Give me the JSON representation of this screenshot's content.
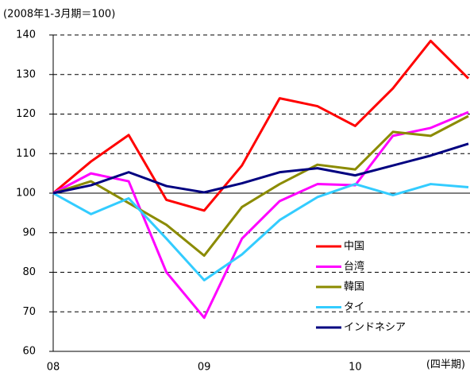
{
  "chart_data": {
    "type": "line",
    "subtitle": "(2008年1-3月期＝100)",
    "x_label": "(四半期)",
    "categories": [
      "08",
      null,
      null,
      null,
      "09",
      null,
      null,
      null,
      "10",
      null,
      null,
      null
    ],
    "ylim": [
      60,
      140
    ],
    "yticks": [
      60,
      70,
      80,
      90,
      100,
      110,
      120,
      130,
      140
    ],
    "grid": true,
    "reference_line": 100,
    "legend": "lower right",
    "series": [
      {
        "name": "中国",
        "color": "#ff0000",
        "values": [
          100,
          108,
          114.7,
          98.3,
          95.6,
          107,
          124,
          122,
          117,
          126.5,
          138.5,
          129
        ]
      },
      {
        "name": "台湾",
        "color": "#ff00ff",
        "values": [
          100,
          105,
          103,
          80,
          68.5,
          88.5,
          98,
          102.3,
          102,
          114.5,
          116.5,
          120.5
        ]
      },
      {
        "name": "韓国",
        "color": "#8b8b00",
        "values": [
          100,
          103,
          97.5,
          92,
          84.2,
          96.5,
          102.3,
          107.2,
          106,
          115.5,
          114.5,
          119.5
        ]
      },
      {
        "name": "タイ",
        "color": "#33ccff",
        "values": [
          100,
          94.7,
          98.7,
          88.5,
          78,
          84.5,
          93.2,
          99,
          102.3,
          99.5,
          102.3,
          101.5
        ]
      },
      {
        "name": "インドネシア",
        "color": "#000080",
        "values": [
          100,
          102,
          105.3,
          101.8,
          100.2,
          102.5,
          105.3,
          106.3,
          104.5,
          107,
          109.5,
          112.5
        ]
      }
    ]
  }
}
